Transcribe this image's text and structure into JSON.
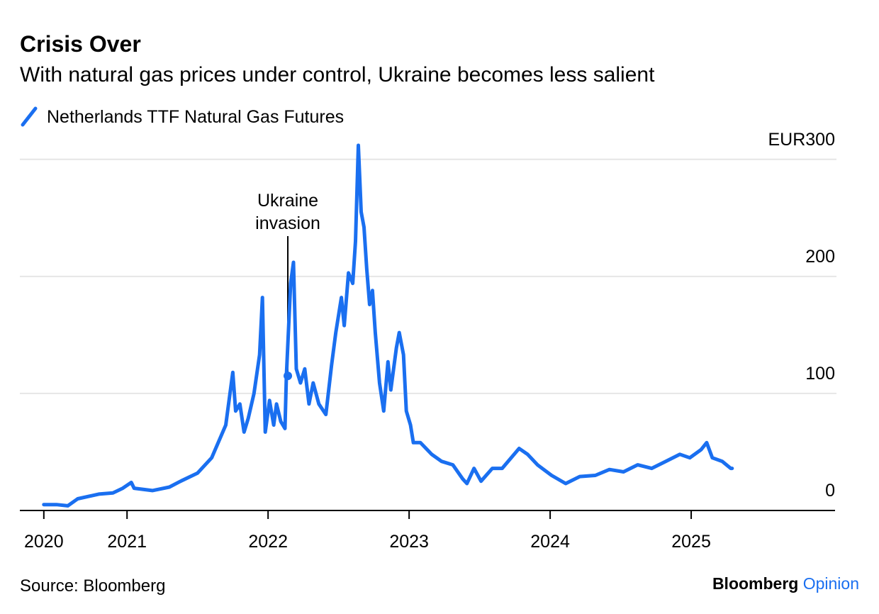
{
  "chart_data": {
    "type": "line",
    "title": "Crisis Over",
    "subtitle": "With natural gas prices under control, Ukraine becomes less salient",
    "source": "Source: Bloomberg",
    "brand": [
      "Bloomberg",
      "Opinion"
    ],
    "annotation": {
      "lines": [
        "Ukraine",
        "invasion"
      ],
      "x": 2022.14,
      "y": 115
    },
    "x": [
      2020.41,
      2020.5,
      2020.58,
      2020.65,
      2020.8,
      2020.9,
      2020.97,
      2021.03,
      2021.05,
      2021.18,
      2021.3,
      2021.38,
      2021.5,
      2021.6,
      2021.7,
      2021.75,
      2021.77,
      2021.8,
      2021.83,
      2021.86,
      2021.9,
      2021.94,
      2021.96,
      2021.98,
      2022.01,
      2022.04,
      2022.06,
      2022.09,
      2022.12,
      2022.13,
      2022.16,
      2022.18,
      2022.2,
      2022.23,
      2022.26,
      2022.29,
      2022.32,
      2022.36,
      2022.41,
      2022.45,
      2022.48,
      2022.52,
      2022.54,
      2022.57,
      2022.6,
      2022.62,
      2022.64,
      2022.66,
      2022.68,
      2022.7,
      2022.72,
      2022.74,
      2022.76,
      2022.79,
      2022.82,
      2022.85,
      2022.87,
      2022.91,
      2022.93,
      2022.96,
      2022.98,
      2023.01,
      2023.03,
      2023.08,
      2023.16,
      2023.23,
      2023.31,
      2023.38,
      2023.41,
      2023.46,
      2023.51,
      2023.59,
      2023.66,
      2023.78,
      2023.84,
      2023.91,
      2024.01,
      2024.11,
      2024.21,
      2024.32,
      2024.42,
      2024.52,
      2024.62,
      2024.72,
      2024.82,
      2024.92,
      2024.99,
      2025.07,
      2025.11,
      2025.15,
      2025.22,
      2025.28,
      2025.29
    ],
    "series": [
      {
        "name": "Netherlands TTF Natural Gas Futures",
        "color": "#1a6ff0",
        "values": [
          5,
          5,
          4,
          10,
          14,
          15,
          19,
          24,
          19,
          17,
          20,
          25,
          32,
          45,
          73,
          118,
          85,
          91,
          67,
          79,
          100,
          133,
          182,
          67,
          94,
          73,
          91,
          76,
          70,
          115,
          194,
          212,
          121,
          109,
          121,
          91,
          109,
          91,
          82,
          124,
          152,
          182,
          158,
          203,
          194,
          230,
          312,
          255,
          242,
          206,
          176,
          188,
          152,
          109,
          85,
          127,
          103,
          139,
          152,
          133,
          85,
          73,
          58,
          58,
          48,
          42,
          39,
          27,
          23,
          36,
          25,
          36,
          36,
          53,
          48,
          39,
          30,
          23,
          29,
          30,
          35,
          33,
          39,
          36,
          42,
          48,
          45,
          52,
          58,
          45,
          42,
          36,
          36
        ]
      }
    ],
    "xlim": [
      2020.24,
      2026.02
    ],
    "xticks": [
      {
        "value": 2020.41,
        "label": "2020"
      },
      2021,
      2022,
      2023,
      2024,
      2025
    ],
    "ylim": [
      0,
      315
    ],
    "yticks": [
      0,
      100,
      200,
      {
        "value": 300,
        "label": "EUR300"
      }
    ],
    "grid": true
  }
}
